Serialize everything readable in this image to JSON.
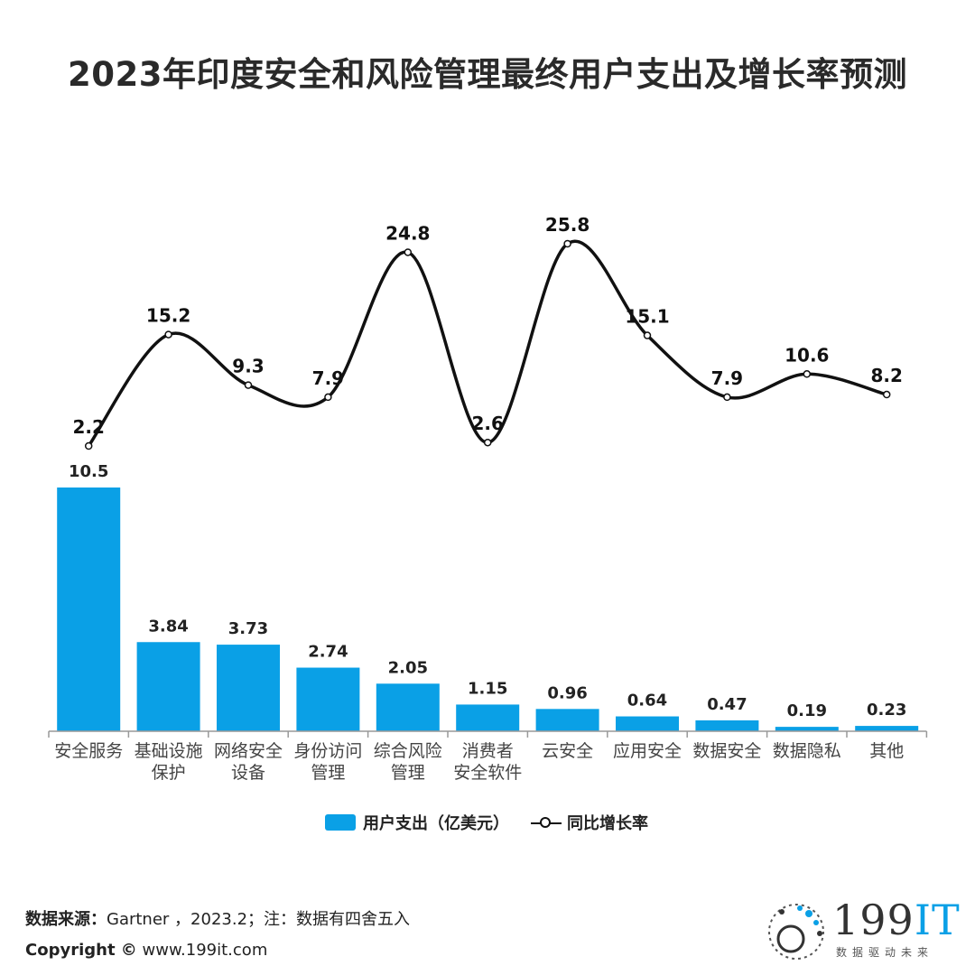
{
  "title": "2023年印度安全和风险管理最终用户支出及增长率预测",
  "chart_data": {
    "type": "bar",
    "categories": [
      [
        "安全服务"
      ],
      [
        "基础设施",
        "保护"
      ],
      [
        "网络安全",
        "设备"
      ],
      [
        "身份访问",
        "管理"
      ],
      [
        "综合风险",
        "管理"
      ],
      [
        "消费者",
        "安全软件"
      ],
      [
        "云安全"
      ],
      [
        "应用安全"
      ],
      [
        "数据安全"
      ],
      [
        "数据隐私"
      ],
      [
        "其他"
      ]
    ],
    "series": [
      {
        "name": "用户支出（亿美元）",
        "type": "bar",
        "color": "#0aa0e6",
        "values": [
          10.5,
          3.84,
          3.73,
          2.74,
          2.05,
          1.15,
          0.96,
          0.64,
          0.47,
          0.19,
          0.23
        ],
        "labels": [
          "10.5",
          "3.84",
          "3.73",
          "2.74",
          "2.05",
          "1.15",
          "0.96",
          "0.64",
          "0.47",
          "0.19",
          "0.23"
        ]
      },
      {
        "name": "同比增长率",
        "type": "line",
        "color": "#111111",
        "values": [
          2.2,
          15.2,
          9.3,
          7.9,
          24.8,
          2.6,
          25.8,
          15.1,
          7.9,
          10.6,
          8.2
        ],
        "labels": [
          "2.2",
          "15.2",
          "9.3",
          "7.9",
          "24.8",
          "2.6",
          "25.8",
          "15.1",
          "7.9",
          "10.6",
          "8.2"
        ]
      }
    ],
    "bar_ylim": [
      0,
      10.5
    ],
    "line_ylim": [
      2.2,
      25.8
    ],
    "grid": false,
    "legend_position": "bottom"
  },
  "legend": {
    "bar": "用户支出（亿美元）",
    "line": "同比增长率"
  },
  "footer": {
    "source_label": "数据来源：",
    "source_text": "Gartner ，2023.2；注：数据有四舍五入",
    "copyright_label": "Copyright ©",
    "copyright_text": " www.199it.com"
  },
  "brand": {
    "name_num": "199",
    "name_it": "IT",
    "slogan": "数据驱动未来",
    "accent": "#0aa0e6"
  }
}
